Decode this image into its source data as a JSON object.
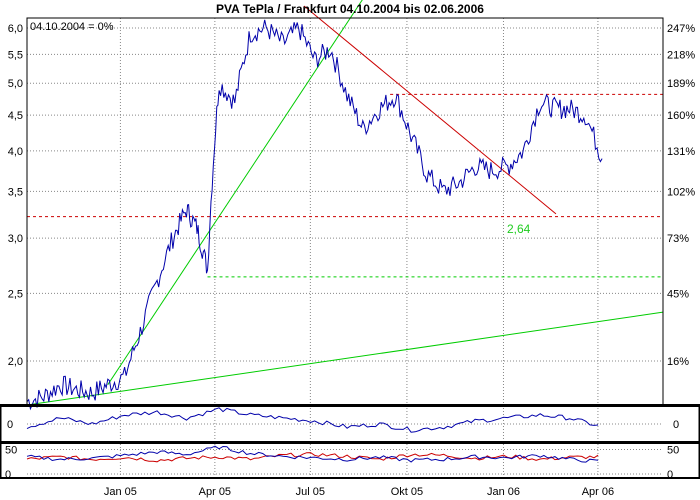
{
  "chart_data": {
    "type": "line",
    "title": "PVA TePla / Frankfurt 04.10.2004 bis 02.06.2006",
    "baseline_label": "04.10.2004 = 0%",
    "annotation_label": "2,64",
    "colors": {
      "price": "#0000aa",
      "support": "#00cc00",
      "resistance": "#cc0000",
      "grid": "#888888",
      "frame": "#000000"
    },
    "x_ticks": [
      "Jan 05",
      "Apr 05",
      "Jul 05",
      "Okt 05",
      "Jan 06",
      "Apr 06"
    ],
    "y_left_ticks": [
      "6,0",
      "5,5",
      "5,0",
      "4,5",
      "4,0",
      "3,5",
      "3,0",
      "2,5",
      "2,0"
    ],
    "y_right_ticks": [
      "247%",
      "218%",
      "189%",
      "160%",
      "131%",
      "102%",
      "73%",
      "45%",
      "16%"
    ],
    "ylim": [
      1.73,
      6.2
    ],
    "y_scale": "log",
    "grid": true,
    "price_series": {
      "x": [
        "2004-10-04",
        "2004-10-20",
        "2004-11-05",
        "2004-11-20",
        "2004-12-05",
        "2004-12-20",
        "2005-01-05",
        "2005-01-20",
        "2005-02-05",
        "2005-02-20",
        "2005-03-05",
        "2005-03-15",
        "2005-03-25",
        "2005-04-05",
        "2005-04-20",
        "2005-05-05",
        "2005-05-20",
        "2005-06-05",
        "2005-06-20",
        "2005-07-05",
        "2005-07-20",
        "2005-08-05",
        "2005-08-20",
        "2005-09-05",
        "2005-09-20",
        "2005-10-05",
        "2005-10-20",
        "2005-11-05",
        "2005-11-20",
        "2005-12-05",
        "2005-12-20",
        "2006-01-05",
        "2006-01-20",
        "2006-02-05",
        "2006-02-20",
        "2006-03-05",
        "2006-03-20",
        "2006-04-05"
      ],
      "y": [
        1.75,
        1.78,
        1.85,
        1.82,
        1.8,
        1.85,
        1.9,
        2.2,
        2.6,
        3.0,
        3.3,
        3.1,
        2.7,
        5.0,
        4.7,
        5.9,
        6.0,
        5.7,
        6.0,
        5.4,
        5.6,
        4.8,
        4.3,
        4.6,
        4.8,
        4.2,
        3.7,
        3.5,
        3.6,
        3.8,
        3.75,
        3.8,
        4.0,
        4.7,
        4.6,
        4.6,
        4.5,
        3.9
      ]
    },
    "indicator1": {
      "label": "0",
      "x": [
        "2004-10-04",
        "2004-11-05",
        "2004-12-05",
        "2005-01-05",
        "2005-02-05",
        "2005-03-05",
        "2005-04-05",
        "2005-05-05",
        "2005-06-05",
        "2005-07-05",
        "2005-08-05",
        "2005-09-05",
        "2005-10-05",
        "2005-11-05",
        "2005-12-05",
        "2006-01-05",
        "2006-02-05",
        "2006-03-05",
        "2006-04-05"
      ],
      "y": [
        -1,
        2,
        0,
        3,
        4,
        2,
        5,
        3,
        2,
        1,
        -1,
        0,
        -2,
        -1,
        1,
        2,
        3,
        2,
        -1
      ]
    },
    "indicator2": {
      "labels": [
        "50",
        "0"
      ],
      "x": [
        "2004-10-04",
        "2004-11-05",
        "2004-12-05",
        "2005-01-05",
        "2005-02-05",
        "2005-03-05",
        "2005-04-05",
        "2005-05-05",
        "2005-06-05",
        "2005-07-05",
        "2005-08-05",
        "2005-09-05",
        "2005-10-05",
        "2005-11-05",
        "2005-12-05",
        "2006-01-05",
        "2006-02-05",
        "2006-03-05",
        "2006-04-05"
      ],
      "blue": [
        35,
        30,
        32,
        38,
        45,
        40,
        55,
        42,
        36,
        33,
        30,
        34,
        28,
        30,
        35,
        33,
        38,
        30,
        25
      ],
      "red": [
        30,
        35,
        30,
        34,
        28,
        32,
        35,
        30,
        38,
        40,
        36,
        30,
        40,
        38,
        32,
        36,
        30,
        34,
        35
      ]
    },
    "lines": {
      "support_steep": {
        "from": [
          "2004-12-20",
          1.85
        ],
        "to": [
          "2005-08-20",
          6.6
        ]
      },
      "support_long": {
        "from": [
          "2004-10-04",
          1.73
        ],
        "to": [
          "2006-06-02",
          2.35
        ]
      },
      "downtrend": {
        "from": [
          "2005-06-25",
          6.45
        ],
        "to": [
          "2006-02-20",
          3.25
        ]
      },
      "resistance_upper": {
        "from": [
          "2005-09-15",
          4.82
        ],
        "to": [
          "2006-06-02",
          4.82
        ]
      },
      "resistance_lower": {
        "from": [
          "2004-10-04",
          3.22
        ],
        "to": [
          "2006-06-02",
          3.22
        ]
      },
      "support_level": {
        "from": [
          "2005-03-25",
          2.64
        ],
        "to": [
          "2006-06-02",
          2.64
        ]
      }
    }
  }
}
